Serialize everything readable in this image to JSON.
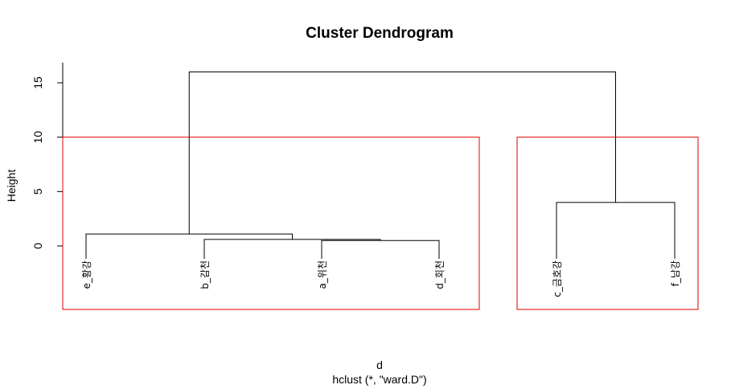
{
  "chart_data": {
    "type": "dendrogram",
    "title": "Cluster Dendrogram",
    "ylabel": "Height",
    "xlabel": "d",
    "sub": "hclust (*, \"ward.D\")",
    "ylim": [
      0,
      16
    ],
    "yticks": [
      0,
      5,
      10,
      15
    ],
    "leaves": [
      "e_황강",
      "b_감천",
      "a_위천",
      "d_회천",
      "c_금호강",
      "f_남강"
    ],
    "merges": [
      {
        "left": "a_위천",
        "right": "d_회천",
        "height": 0.5
      },
      {
        "left": "b_감천",
        "right": "cluster-1",
        "height": 0.6
      },
      {
        "left": "e_황강",
        "right": "cluster-2",
        "height": 1.1
      },
      {
        "left": "c_금호강",
        "right": "f_남강",
        "height": 4.0
      },
      {
        "left": "cluster-3",
        "right": "cluster-4",
        "height": 16.0
      }
    ],
    "cluster_boxes": [
      {
        "leaves": [
          "e_황강",
          "b_감천",
          "a_위천",
          "d_회천"
        ],
        "color": "#e00000"
      },
      {
        "leaves": [
          "c_금호강",
          "f_남강"
        ],
        "color": "#e00000"
      }
    ],
    "cut_height": 10
  },
  "colors": {
    "tree": "#000000",
    "box": "#e00000"
  }
}
